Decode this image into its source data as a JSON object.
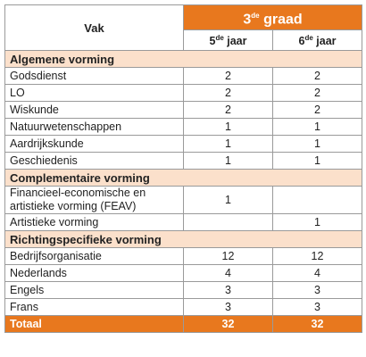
{
  "header": {
    "subject": "Vak",
    "grade": {
      "number": "3",
      "sup": "de",
      "text": " graad"
    },
    "years": [
      {
        "number": "5",
        "sup": "de",
        "text": " jaar"
      },
      {
        "number": "6",
        "sup": "de",
        "text": " jaar"
      }
    ]
  },
  "sections": [
    {
      "title": "Algemene vorming",
      "rows": [
        [
          "Godsdienst",
          2,
          2
        ],
        [
          "LO",
          2,
          2
        ],
        [
          "Wiskunde",
          2,
          2
        ],
        [
          "Natuurwetenschappen",
          1,
          1
        ],
        [
          "Aardrijkskunde",
          1,
          1
        ],
        [
          "Geschiedenis",
          1,
          1
        ]
      ]
    },
    {
      "title": "Complementaire vorming",
      "rows": [
        [
          "Financieel-economische en artistieke vorming (FEAV)",
          1,
          null
        ],
        [
          "Artistieke vorming",
          null,
          1
        ]
      ]
    },
    {
      "title": "Richtingspecifieke vorming",
      "rows": [
        [
          "Bedrijfsorganisatie",
          12,
          12
        ],
        [
          "Nederlands",
          4,
          4
        ],
        [
          "Engels",
          3,
          3
        ],
        [
          "Frans",
          3,
          3
        ]
      ]
    }
  ],
  "total": [
    "Totaal",
    32,
    32
  ]
}
